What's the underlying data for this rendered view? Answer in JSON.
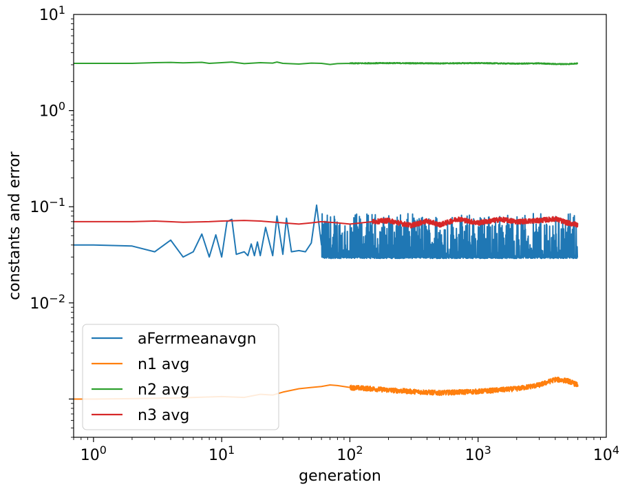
{
  "chart_data": {
    "type": "line",
    "title": "",
    "xlabel": "generation",
    "ylabel": "constants and error",
    "xscale": "log",
    "yscale": "log",
    "xlim": [
      0.7,
      10000
    ],
    "ylim": [
      0.0004,
      10
    ],
    "x_ticks": [
      {
        "value": 1,
        "base": "10",
        "exp": "0"
      },
      {
        "value": 10,
        "base": "10",
        "exp": "1"
      },
      {
        "value": 100,
        "base": "10",
        "exp": "2"
      },
      {
        "value": 1000,
        "base": "10",
        "exp": "3"
      },
      {
        "value": 10000,
        "base": "10",
        "exp": "4"
      }
    ],
    "y_ticks": [
      {
        "value": 0.01,
        "base": "10",
        "exp": "−2"
      },
      {
        "value": 0.1,
        "base": "10",
        "exp": "−1"
      },
      {
        "value": 1,
        "base": "10",
        "exp": "0"
      },
      {
        "value": 10,
        "base": "10",
        "exp": "1"
      }
    ],
    "grid": false,
    "legend_position": "bottom-left",
    "series": [
      {
        "name": "aFerrmeanavgn",
        "color": "#1f77b4",
        "x": [
          0.7,
          1,
          2,
          3,
          4,
          5,
          6,
          7,
          8,
          9,
          10,
          11,
          12,
          13,
          15,
          16,
          17,
          18,
          19,
          20,
          22,
          25,
          27,
          30,
          32,
          35,
          40,
          45,
          50,
          55,
          60,
          70,
          80,
          90,
          100,
          150,
          200,
          300,
          500,
          700,
          1000,
          2000,
          3000,
          4000,
          5000,
          6000
        ],
        "y": [
          0.04,
          0.04,
          0.039,
          0.034,
          0.045,
          0.03,
          0.034,
          0.052,
          0.03,
          0.051,
          0.03,
          0.07,
          0.074,
          0.032,
          0.034,
          0.031,
          0.041,
          0.031,
          0.043,
          0.031,
          0.061,
          0.031,
          0.08,
          0.032,
          0.076,
          0.034,
          0.035,
          0.034,
          0.042,
          0.104,
          0.04,
          0.055,
          0.037,
          0.047,
          0.034,
          0.053,
          0.04,
          0.06,
          0.045,
          0.065,
          0.05,
          0.066,
          0.055,
          0.08,
          0.06,
          0.045
        ],
        "noise": {
          "from": 60,
          "low": 0.029,
          "high": 0.085
        }
      },
      {
        "name": "n1 avg",
        "color": "#ff7f0e",
        "x": [
          0.7,
          1,
          2,
          5,
          10,
          15,
          20,
          25,
          30,
          40,
          50,
          60,
          70,
          80,
          100,
          150,
          200,
          300,
          500,
          700,
          1000,
          2000,
          3000,
          4000,
          5000,
          6000
        ],
        "y": [
          0.001,
          0.001,
          0.00101,
          0.00103,
          0.00106,
          0.00104,
          0.00112,
          0.0011,
          0.00118,
          0.00128,
          0.00132,
          0.00135,
          0.0014,
          0.00138,
          0.00132,
          0.00128,
          0.00124,
          0.0012,
          0.00116,
          0.00118,
          0.0012,
          0.00128,
          0.0014,
          0.0016,
          0.00155,
          0.0014
        ],
        "noise": {
          "from": 100,
          "amp": 0.06
        }
      },
      {
        "name": "n2 avg",
        "color": "#2ca02c",
        "x": [
          0.7,
          1,
          2,
          3,
          4,
          5,
          7,
          8,
          10,
          12,
          15,
          20,
          25,
          27,
          30,
          40,
          50,
          60,
          70,
          80,
          100,
          200,
          500,
          1000,
          2000,
          3000,
          4000,
          5000,
          6000
        ],
        "y": [
          3.1,
          3.1,
          3.1,
          3.15,
          3.17,
          3.14,
          3.18,
          3.1,
          3.15,
          3.2,
          3.08,
          3.15,
          3.12,
          3.2,
          3.1,
          3.05,
          3.12,
          3.1,
          3.02,
          3.08,
          3.1,
          3.12,
          3.1,
          3.12,
          3.08,
          3.1,
          3.05,
          3.05,
          3.1
        ],
        "noise": {
          "from": 100,
          "amp": 0.012
        }
      },
      {
        "name": "n3 avg",
        "color": "#d62728",
        "x": [
          0.7,
          1,
          2,
          3,
          5,
          8,
          10,
          15,
          20,
          30,
          40,
          50,
          60,
          80,
          100,
          150,
          200,
          300,
          400,
          500,
          600,
          700,
          800,
          1000,
          1500,
          2000,
          3000,
          4000,
          5000,
          6000
        ],
        "y": [
          0.07,
          0.07,
          0.07,
          0.071,
          0.069,
          0.07,
          0.071,
          0.072,
          0.071,
          0.068,
          0.066,
          0.068,
          0.07,
          0.068,
          0.066,
          0.07,
          0.072,
          0.064,
          0.071,
          0.065,
          0.07,
          0.075,
          0.072,
          0.068,
          0.074,
          0.07,
          0.072,
          0.075,
          0.068,
          0.065
        ],
        "noise": {
          "from": 150,
          "amp": 0.06
        }
      }
    ]
  }
}
